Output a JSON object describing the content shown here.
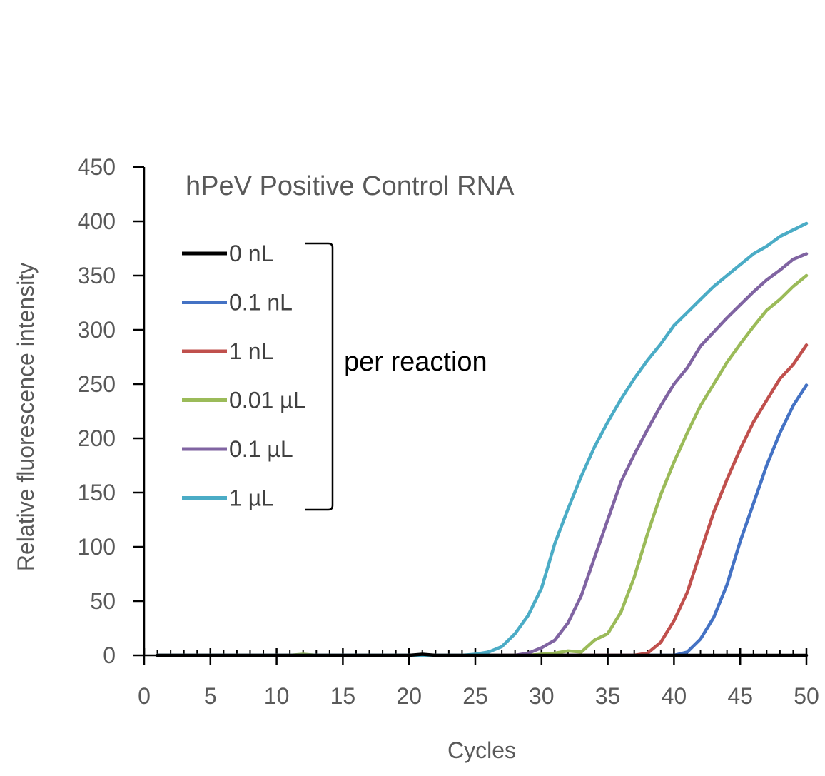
{
  "chart_data": {
    "type": "line",
    "title": "hPeV Positive Control RNA",
    "xlabel": "Cycles",
    "ylabel": "Relative fluorescence intensity",
    "xlim": [
      0,
      50
    ],
    "ylim": [
      0,
      450
    ],
    "x_ticks": [
      0,
      5,
      10,
      15,
      20,
      25,
      30,
      35,
      40,
      45,
      50
    ],
    "y_ticks": [
      0,
      50,
      100,
      150,
      200,
      250,
      300,
      350,
      400,
      450
    ],
    "grid": false,
    "legend_position": "top-left",
    "annotation": "per reaction",
    "x": [
      1,
      2,
      3,
      4,
      5,
      6,
      7,
      8,
      9,
      10,
      11,
      12,
      13,
      14,
      15,
      16,
      17,
      18,
      19,
      20,
      21,
      22,
      23,
      24,
      25,
      26,
      27,
      28,
      29,
      30,
      31,
      32,
      33,
      34,
      35,
      36,
      37,
      38,
      39,
      40,
      41,
      42,
      43,
      44,
      45,
      46,
      47,
      48,
      49,
      50
    ],
    "series": [
      {
        "name": "0 nL",
        "color": "#000000",
        "values": [
          0,
          0,
          0,
          0,
          0,
          0,
          0,
          0,
          0,
          0,
          0,
          0,
          0,
          0,
          0,
          0,
          0,
          0,
          0,
          0,
          1,
          0,
          0,
          0,
          0,
          0,
          0,
          0,
          0,
          0,
          0,
          0,
          0,
          0,
          0,
          0,
          0,
          0,
          0,
          0,
          0,
          0,
          0,
          0,
          0,
          0,
          0,
          0,
          0,
          0
        ]
      },
      {
        "name": "0.1 nL",
        "color": "#4472C4",
        "values": [
          0,
          0,
          0,
          0,
          0,
          0,
          0,
          0,
          0,
          0,
          0,
          0,
          0,
          0,
          0,
          0,
          0,
          0,
          0,
          0,
          0,
          0,
          0,
          0,
          0,
          0,
          0,
          0,
          0,
          0,
          0,
          0,
          0,
          0,
          0,
          0,
          0,
          0,
          0,
          0,
          3,
          15,
          35,
          65,
          105,
          140,
          175,
          205,
          230,
          249
        ]
      },
      {
        "name": "1 nL",
        "color": "#C0504D",
        "values": [
          0,
          0,
          0,
          0,
          0,
          0,
          0,
          0,
          0,
          0,
          0,
          0,
          0,
          0,
          0,
          0,
          0,
          0,
          0,
          0,
          0,
          0,
          0,
          0,
          0,
          0,
          0,
          0,
          0,
          0,
          0,
          0,
          0,
          0,
          0,
          0,
          0,
          2,
          12,
          32,
          58,
          95,
          132,
          162,
          190,
          215,
          235,
          255,
          268,
          286
        ]
      },
      {
        "name": "0.01 µL",
        "color": "#9BBB59",
        "values": [
          0,
          0,
          0,
          0,
          0,
          0,
          0,
          0,
          0,
          0,
          0,
          1,
          0,
          0,
          0,
          0,
          0,
          0,
          0,
          0,
          0,
          0,
          0,
          0,
          0,
          0,
          0,
          0,
          0,
          1,
          2,
          4,
          3,
          14,
          20,
          40,
          72,
          112,
          148,
          178,
          205,
          230,
          250,
          270,
          287,
          303,
          318,
          328,
          340,
          350
        ]
      },
      {
        "name": "0.1 µL",
        "color": "#8064A2",
        "values": [
          0,
          0,
          0,
          0,
          0,
          0,
          0,
          0,
          0,
          0,
          0,
          0,
          0,
          0,
          0,
          0,
          0,
          0,
          0,
          0,
          0,
          0,
          0,
          0,
          0,
          0,
          0,
          0,
          2,
          7,
          14,
          30,
          55,
          90,
          125,
          160,
          185,
          208,
          230,
          250,
          265,
          285,
          298,
          311,
          323,
          335,
          346,
          355,
          365,
          370
        ]
      },
      {
        "name": "1 µL",
        "color": "#4BACC6",
        "values": [
          0,
          0,
          0,
          0,
          0,
          0,
          0,
          0,
          0,
          0,
          0,
          0,
          0,
          0,
          0,
          0,
          0,
          0,
          0,
          0,
          0,
          0,
          0,
          0,
          1,
          3,
          8,
          20,
          37,
          62,
          103,
          135,
          165,
          192,
          215,
          236,
          255,
          272,
          287,
          304,
          316,
          328,
          340,
          350,
          360,
          370,
          377,
          386,
          392,
          398
        ]
      }
    ]
  }
}
